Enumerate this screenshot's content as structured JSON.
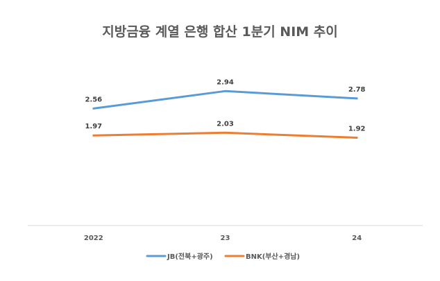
{
  "chart_data": {
    "type": "line",
    "title": "지방금융 계열 은행 합산 1분기 NIM 추이",
    "categories": [
      "2022",
      "23",
      "24"
    ],
    "series": [
      {
        "name": "JB(전북+광주)",
        "values": [
          2.56,
          2.94,
          2.78
        ],
        "color": "#5B9BD5"
      },
      {
        "name": "BNK(부산+경남)",
        "values": [
          1.97,
          2.03,
          1.92
        ],
        "color": "#ED7D31"
      }
    ],
    "ylim": [
      0,
      3.3
    ],
    "grid": false,
    "legend": "bottom",
    "data_labels": true
  }
}
